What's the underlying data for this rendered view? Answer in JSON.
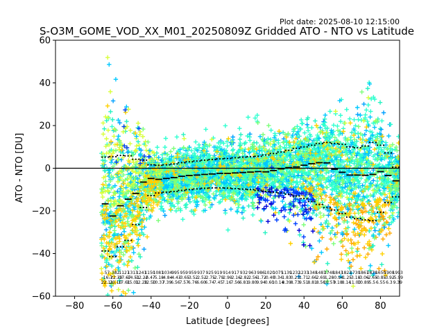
{
  "plot_date": "Plot date: 2025-08-10 12:15:00",
  "chart_data": {
    "type": "scatter",
    "title": "S-O3M_GOME_VOD_XX_M01_20250809Z Gridded ATO - NTO vs Latitude",
    "xlabel": "Latitude [degrees]",
    "ylabel": "ATO - NTO [DU]",
    "xlim": [
      -90,
      90
    ],
    "ylim": [
      -60,
      60
    ],
    "xticks": [
      -80,
      -60,
      -40,
      -20,
      0,
      20,
      40,
      60,
      80
    ],
    "yticks": [
      -60,
      -40,
      -20,
      0,
      20,
      40,
      60
    ],
    "xtick_labels": [
      "−80",
      "−60",
      "−40",
      "−20",
      "0",
      "20",
      "40",
      "60",
      "80"
    ],
    "ytick_labels": [
      "−60",
      "−40",
      "−20",
      "0",
      "20",
      "40",
      "60"
    ],
    "zero_line": 0,
    "marker": "+",
    "colors": [
      "#00c8ff",
      "#2fffd0",
      "#26f2c2",
      "#7cff7a",
      "#d8ff3a",
      "#ffd000",
      "#ffaa00",
      "#0040ff",
      "#0000d8",
      "#00a0ff"
    ],
    "mean_bins": {
      "lat": [
        -64,
        -60,
        -56,
        -52,
        -48,
        -44,
        -40,
        -36,
        -32,
        -28,
        -24,
        -20,
        -16,
        -12,
        -8,
        -4,
        0,
        4,
        8,
        12,
        16,
        20,
        24,
        28,
        32,
        36,
        40,
        44,
        48,
        52,
        56,
        60,
        64,
        68,
        72,
        76,
        80,
        84,
        88
      ],
      "mean": [
        -16.7,
        -22.4,
        -17.6,
        -14.5,
        -11.8,
        -6.5,
        -4.8,
        -5.2,
        -4.8,
        -4.4,
        -3.8,
        -3.4,
        -3.2,
        -2.9,
        -2.7,
        -2.4,
        -2.4,
        -2.2,
        -2.0,
        -1.8,
        -1.6,
        -1.7,
        -1.1,
        -0.3,
        0.3,
        0.6,
        1.4,
        2.1,
        2.6,
        2.5,
        -0.5,
        -1.9,
        -3.2,
        -3.2,
        -3.3,
        -2.9,
        -1.6,
        -3.4,
        -5.9
      ],
      "upper": [
        5.2,
        5.4,
        6.0,
        5.8,
        4.2,
        3.8,
        1.6,
        1.4,
        1.6,
        2.0,
        2.6,
        3.0,
        3.4,
        3.8,
        4.1,
        4.4,
        4.6,
        4.9,
        5.2,
        5.4,
        5.6,
        6.2,
        6.9,
        7.6,
        8.4,
        9.3,
        10.0,
        10.8,
        11.6,
        12.1,
        11.6,
        11.2,
        10.0,
        9.6,
        10.4,
        12.1,
        10.8,
        7.2,
        0.5
      ],
      "lower": [
        -38.8,
        -41.4,
        -36.8,
        -33.8,
        -26.4,
        -18.4,
        -12.8,
        -11.6,
        -11.2,
        -10.9,
        -10.4,
        -10.0,
        -9.7,
        -9.4,
        -9.2,
        -9.2,
        -9.3,
        -9.6,
        -9.8,
        -10.0,
        -10.4,
        -10.9,
        -11.3,
        -11.6,
        -12.2,
        -13.0,
        -14.2,
        -15.6,
        -17.0,
        -18.5,
        -19.6,
        -21.2,
        -22.9,
        -23.6,
        -24.2,
        -24.6,
        -20.6,
        -16.1,
        -13.4
      ]
    },
    "stats_rows": [
      [
        "57",
        "382",
        "1127",
        "1313",
        "1241",
        "1150",
        "1081",
        "1034",
        "995",
        "959",
        "959",
        "937",
        "925",
        "919",
        "914",
        "917",
        "932",
        "963",
        "986",
        "1020",
        "1075",
        "1139",
        "1232",
        "1233",
        "1348",
        "1487",
        "1748",
        "1843",
        "1823",
        "1730",
        "1867",
        "1876",
        "1650",
        "1908",
        "1993"
      ],
      [
        "-16.7",
        "-22.39",
        "-17.67",
        "-14.51",
        "-12.22",
        "-6.47",
        "-5.18",
        "-4.84",
        "-4.43",
        "-3.65",
        "-3.52",
        "-2.52",
        "-2.75",
        "-2.79",
        "-2.90",
        "-2.16",
        "-2.82",
        "-2.56",
        "-1.72",
        "-0.40",
        "0.34",
        "1.83",
        "0.23",
        "1.71",
        "2.66",
        "2.69",
        "1.28",
        "-0.94",
        "-1.25",
        "-3.18",
        "-3.06",
        "-2.65",
        "-0.85",
        "-3.92",
        "-5.99"
      ],
      [
        "22.11",
        "20.10",
        "17.61",
        "15.01",
        "12.28",
        "12.50",
        "10.37",
        "7.39",
        "6.56",
        "7.57",
        "6.76",
        "6.60",
        "6.74",
        "7.45",
        "7.16",
        "7.56",
        "6.81",
        "9.80",
        "9.94",
        "0.60",
        "10.14",
        "8.39",
        "8.73",
        "9.51",
        "8.81",
        "8.56",
        "10.57",
        "9.18",
        "8.14",
        "11.00",
        "10.89",
        "5.5",
        "6.55",
        "6.3",
        "9.39"
      ]
    ]
  }
}
